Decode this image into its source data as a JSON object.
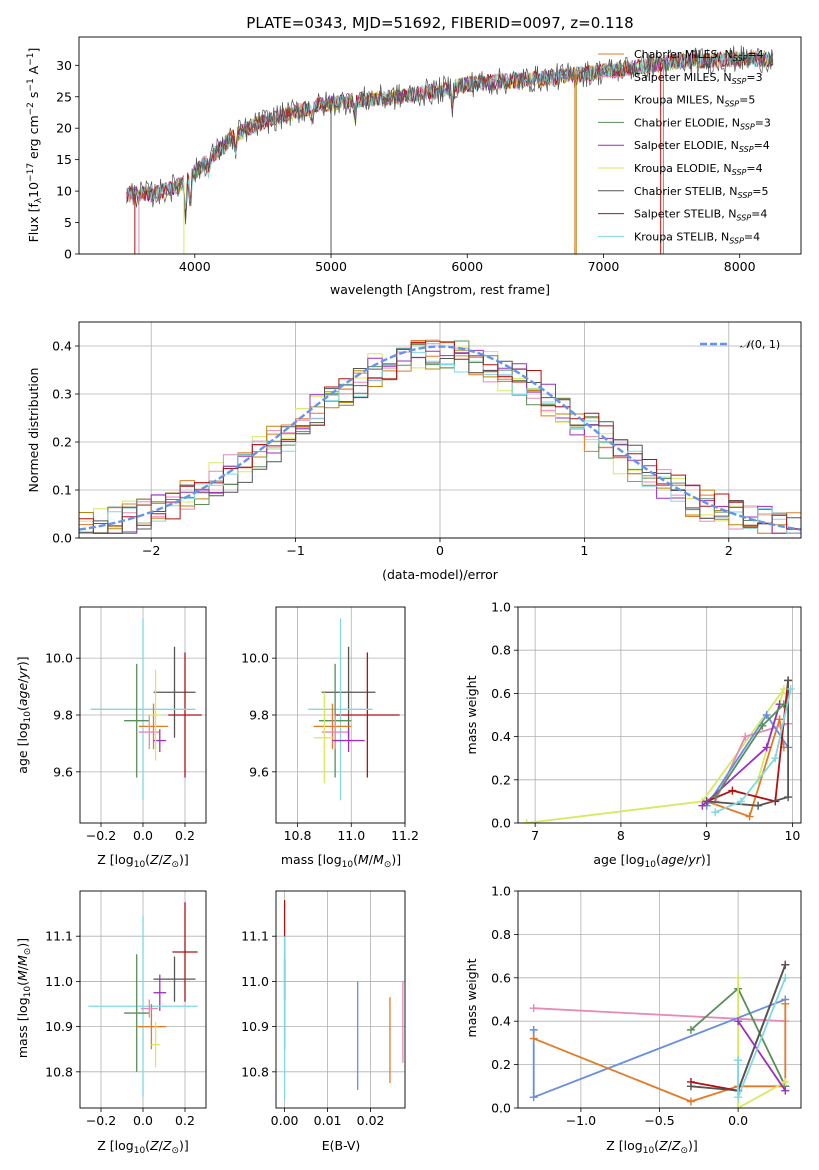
{
  "colors": {
    "chabrier_miles": "#e07b28",
    "salpeter_miles": "#e68ab8",
    "kroupa_miles": "#b8860b",
    "chabrier_elodie": "#5a8f5a",
    "salpeter_elodie": "#9b30c0",
    "kroupa_elodie": "#d8e860",
    "chabrier_stelib": "#555555",
    "salpeter_stelib": "#b01010",
    "kroupa_stelib": "#80d8e0",
    "gauss": "#6495ed",
    "blue": "#6690dd",
    "lime": "#c8e850",
    "grid": "#b0b0b0"
  },
  "chart_data": [
    {
      "id": "spectrum",
      "type": "line",
      "title": "PLATE=0343, MJD=51692, FIBERID=0097, z=0.118",
      "xlabel": "wavelength [Angstrom, rest frame]",
      "ylabel": "Flux [f_λ10^-17 erg cm^-2 s^-1 A^-1]",
      "xlim": [
        3150,
        8450
      ],
      "ylim": [
        0,
        34.5
      ],
      "xticks": [
        4000,
        5000,
        6000,
        7000,
        8000
      ],
      "yticks": [
        0,
        5,
        10,
        15,
        20,
        25,
        30
      ],
      "grid": false,
      "legend_position": "upper-right",
      "legend": [
        "Chabrier MILES, N_SSP=4",
        "Salpeter MILES, N_SSP=3",
        "Kroupa MILES, N_SSP=5",
        "Chabrier ELODIE, N_SSP=3",
        "Salpeter ELODIE, N_SSP=4",
        "Kroupa ELODIE, N_SSP=4",
        "Chabrier STELIB, N_SSP=5",
        "Salpeter STELIB, N_SSP=4",
        "Kroupa STELIB, N_SSP=4"
      ],
      "continuum": [
        [
          3500,
          9.5
        ],
        [
          3700,
          9.5
        ],
        [
          3900,
          11
        ],
        [
          4000,
          13
        ],
        [
          4100,
          15
        ],
        [
          4300,
          19
        ],
        [
          4500,
          21
        ],
        [
          4800,
          23
        ],
        [
          5000,
          24
        ],
        [
          5200,
          24.5
        ],
        [
          5500,
          25
        ],
        [
          5800,
          26
        ],
        [
          6000,
          27
        ],
        [
          6300,
          27.5
        ],
        [
          6600,
          28
        ],
        [
          7000,
          29
        ],
        [
          7500,
          30.5
        ],
        [
          8000,
          31
        ],
        [
          8250,
          31
        ]
      ]
    },
    {
      "id": "residuals",
      "type": "histogram",
      "xlabel": "(data-model)/error",
      "ylabel": "Normed distribution",
      "xlim": [
        -2.5,
        2.5
      ],
      "ylim": [
        0,
        0.45
      ],
      "xticks": [
        -2,
        -1,
        0,
        1,
        2
      ],
      "yticks": [
        0.0,
        0.1,
        0.2,
        0.3,
        0.4
      ],
      "grid": true,
      "legend": "N(0,1)",
      "legend_position": "upper-right"
    },
    {
      "id": "age_vs_Z",
      "type": "errorbar",
      "xlabel": "Z [log10(Z/Z_sun)]",
      "ylabel": "age [log10(age/yr)]",
      "xlim": [
        -0.3,
        0.3
      ],
      "ylim": [
        9.42,
        10.18
      ],
      "xticks": [
        -0.2,
        0.0,
        0.2
      ],
      "yticks": [
        9.6,
        9.8,
        10.0
      ],
      "grid": true,
      "points": [
        {
          "c": "chabrier_stelib",
          "x": 0.15,
          "y": 9.88,
          "xe": 0.1,
          "ye": 0.16
        },
        {
          "c": "salpeter_stelib",
          "x": 0.2,
          "y": 9.8,
          "xe": 0.08,
          "ye": 0.22
        },
        {
          "c": "kroupa_stelib",
          "x": 0.0,
          "y": 9.82,
          "xe": 0.25,
          "ye": 0.32
        },
        {
          "c": "chabrier_elodie",
          "x": -0.03,
          "y": 9.78,
          "xe": 0.06,
          "ye": 0.2
        },
        {
          "c": "chabrier_miles",
          "x": 0.05,
          "y": 9.76,
          "xe": 0.07,
          "ye": 0.08
        },
        {
          "c": "salpeter_miles",
          "x": 0.03,
          "y": 9.74,
          "xe": 0.05,
          "ye": 0.06
        },
        {
          "c": "salpeter_elodie",
          "x": 0.08,
          "y": 9.71,
          "xe": 0.03,
          "ye": 0.04
        },
        {
          "c": "kroupa_elodie",
          "x": 0.06,
          "y": 9.8,
          "xe": 0.03,
          "ye": 0.16
        }
      ]
    },
    {
      "id": "age_vs_mass",
      "type": "errorbar",
      "xlabel": "mass [log10(M/M_sun)]",
      "ylabel": "",
      "xlim": [
        10.72,
        11.2
      ],
      "ylim": [
        9.42,
        10.18
      ],
      "xticks": [
        10.8,
        11.0,
        11.2
      ],
      "yticks": [
        9.6,
        9.8,
        10.0
      ],
      "grid": true,
      "points": [
        {
          "c": "chabrier_stelib",
          "x": 10.99,
          "y": 9.88,
          "xe": 0.1,
          "ye": 0.16
        },
        {
          "c": "salpeter_stelib",
          "x": 11.06,
          "y": 9.8,
          "xe": 0.12,
          "ye": 0.22
        },
        {
          "c": "kroupa_stelib",
          "x": 10.96,
          "y": 9.82,
          "xe": 0.12,
          "ye": 0.32
        },
        {
          "c": "chabrier_elodie",
          "x": 10.94,
          "y": 9.78,
          "xe": 0.06,
          "ye": 0.2
        },
        {
          "c": "chabrier_miles",
          "x": 10.93,
          "y": 9.76,
          "xe": 0.07,
          "ye": 0.08
        },
        {
          "c": "salpeter_miles",
          "x": 10.94,
          "y": 9.74,
          "xe": 0.05,
          "ye": 0.06
        },
        {
          "c": "salpeter_elodie",
          "x": 10.99,
          "y": 9.71,
          "xe": 0.06,
          "ye": 0.04
        },
        {
          "c": "kroupa_elodie",
          "x": 10.9,
          "y": 9.72,
          "xe": 0.04,
          "ye": 0.16
        }
      ]
    },
    {
      "id": "weight_vs_age",
      "type": "line",
      "xlabel": "age [log10(age/yr)]",
      "ylabel": "mass weight",
      "xlim": [
        6.8,
        10.1
      ],
      "ylim": [
        0,
        1.0
      ],
      "xticks": [
        7,
        8,
        9,
        10
      ],
      "yticks": [
        0.0,
        0.2,
        0.4,
        0.6,
        0.8,
        1.0
      ],
      "grid": true,
      "series": [
        {
          "c": "kroupa_elodie",
          "x": [
            6.9,
            8.95,
            9.9,
            9.6
          ],
          "y": [
            0.0,
            0.1,
            0.62,
            0.2
          ]
        },
        {
          "c": "chabrier_miles",
          "x": [
            9.0,
            9.5,
            9.85,
            9.9
          ],
          "y": [
            0.1,
            0.03,
            0.48,
            0.35
          ]
        },
        {
          "c": "salpeter_miles",
          "x": [
            9.1,
            9.45,
            9.95
          ],
          "y": [
            0.1,
            0.4,
            0.46
          ]
        },
        {
          "c": "blue",
          "x": [
            9.0,
            9.7,
            9.95
          ],
          "y": [
            0.08,
            0.5,
            0.35
          ]
        },
        {
          "c": "salpeter_stelib",
          "x": [
            9.0,
            9.3,
            9.8,
            9.95
          ],
          "y": [
            0.1,
            0.15,
            0.1,
            0.66
          ]
        },
        {
          "c": "chabrier_stelib",
          "x": [
            9.0,
            9.6,
            9.95,
            9.95
          ],
          "y": [
            0.1,
            0.08,
            0.12,
            0.66
          ]
        },
        {
          "c": "salpeter_elodie",
          "x": [
            8.95,
            9.7,
            9.85
          ],
          "y": [
            0.08,
            0.35,
            0.55
          ]
        },
        {
          "c": "chabrier_elodie",
          "x": [
            9.1,
            9.65,
            9.9
          ],
          "y": [
            0.12,
            0.45,
            0.55
          ]
        },
        {
          "c": "kroupa_stelib",
          "x": [
            9.1,
            9.4,
            9.8,
            9.98
          ],
          "y": [
            0.05,
            0.1,
            0.3,
            0.62
          ]
        }
      ]
    },
    {
      "id": "mass_vs_Z",
      "type": "errorbar",
      "xlabel": "Z [log10(Z/Z_sun)]",
      "ylabel": "mass [log10(M/M_sun)]",
      "xlim": [
        -0.3,
        0.3
      ],
      "ylim": [
        10.72,
        11.2
      ],
      "xticks": [
        -0.2,
        0.0,
        0.2
      ],
      "yticks": [
        10.8,
        10.9,
        11.0,
        11.1
      ],
      "grid": true,
      "points": [
        {
          "c": "salpeter_stelib",
          "x": 0.2,
          "y": 11.065,
          "xe": 0.06,
          "ye": 0.11
        },
        {
          "c": "chabrier_stelib",
          "x": 0.15,
          "y": 11.005,
          "xe": 0.1,
          "ye": 0.05
        },
        {
          "c": "salpeter_elodie",
          "x": 0.08,
          "y": 10.975,
          "xe": 0.03,
          "ye": 0.04
        },
        {
          "c": "kroupa_stelib",
          "x": 0.0,
          "y": 10.945,
          "xe": 0.26,
          "ye": 0.2
        },
        {
          "c": "chabrier_elodie",
          "x": -0.03,
          "y": 10.93,
          "xe": 0.06,
          "ye": 0.13
        },
        {
          "c": "chabrier_miles",
          "x": 0.04,
          "y": 10.9,
          "xe": 0.07,
          "ye": 0.05
        },
        {
          "c": "salpeter_miles",
          "x": 0.03,
          "y": 10.94,
          "xe": 0.04,
          "ye": 0.02
        },
        {
          "c": "kroupa_elodie",
          "x": 0.06,
          "y": 10.86,
          "xe": 0.02,
          "ye": 0.05
        }
      ]
    },
    {
      "id": "mass_vs_EBV",
      "type": "errorbar",
      "xlabel": "E(B-V)",
      "ylabel": "",
      "xlim": [
        -0.002,
        0.028
      ],
      "ylim": [
        10.72,
        11.2
      ],
      "xticks": [
        0.0,
        0.01,
        0.02
      ],
      "yticks": [
        10.8,
        10.9,
        11.0,
        11.1
      ],
      "grid": true,
      "points": [
        {
          "c": "salpeter_stelib",
          "x": 0.0,
          "y": 11.07,
          "xe": 0,
          "ye": 0.11
        },
        {
          "c": "chabrier_stelib",
          "x": 0.0,
          "y": 10.95,
          "xe": 0,
          "ye": 0.1
        },
        {
          "c": "kroupa_stelib",
          "x": 0.0,
          "y": 10.92,
          "xe": 0,
          "ye": 0.18
        },
        {
          "c": "blue",
          "x": 0.017,
          "y": 10.88,
          "xe": 0,
          "ye": 0.12
        },
        {
          "c": "chabrier_miles",
          "x": 0.0245,
          "y": 10.87,
          "xe": 0,
          "ye": 0.095
        },
        {
          "c": "salpeter_miles",
          "x": 0.0275,
          "y": 10.91,
          "xe": 0,
          "ye": 0.09
        }
      ]
    },
    {
      "id": "weight_vs_Z",
      "type": "line",
      "xlabel": "Z [log10(Z/Z_sun)]",
      "ylabel": "mass weight",
      "xlim": [
        -1.4,
        0.4
      ],
      "ylim": [
        0,
        1.0
      ],
      "xticks": [
        -1.0,
        -0.5,
        0.0
      ],
      "yticks": [
        0.0,
        0.2,
        0.4,
        0.6,
        0.8,
        1.0
      ],
      "grid": true,
      "series": [
        {
          "c": "salpeter_miles",
          "x": [
            -1.3,
            0.3
          ],
          "y": [
            0.46,
            0.4
          ]
        },
        {
          "c": "blue",
          "x": [
            -1.3,
            -1.3,
            0.3
          ],
          "y": [
            0.36,
            0.05,
            0.5
          ]
        },
        {
          "c": "chabrier_miles",
          "x": [
            -1.3,
            -0.3,
            0.0,
            0.3,
            0.3
          ],
          "y": [
            0.32,
            0.03,
            0.1,
            0.1,
            0.48
          ]
        },
        {
          "c": "chabrier_elodie",
          "x": [
            -0.3,
            0.0,
            0.3
          ],
          "y": [
            0.36,
            0.55,
            0.1
          ]
        },
        {
          "c": "salpeter_stelib",
          "x": [
            -0.3,
            0.0,
            0.3
          ],
          "y": [
            0.12,
            0.08,
            0.66
          ]
        },
        {
          "c": "chabrier_stelib",
          "x": [
            -0.3,
            0.0,
            0.3
          ],
          "y": [
            0.1,
            0.08,
            0.66
          ]
        },
        {
          "c": "kroupa_elodie",
          "x": [
            0.0,
            0.0,
            0.3
          ],
          "y": [
            0.6,
            0.0,
            0.12
          ]
        },
        {
          "c": "salpeter_elodie",
          "x": [
            0.0,
            0.3
          ],
          "y": [
            0.4,
            0.08
          ]
        },
        {
          "c": "kroupa_stelib",
          "x": [
            0.0,
            0.0,
            0.3
          ],
          "y": [
            0.22,
            0.05,
            0.6
          ]
        }
      ]
    }
  ]
}
